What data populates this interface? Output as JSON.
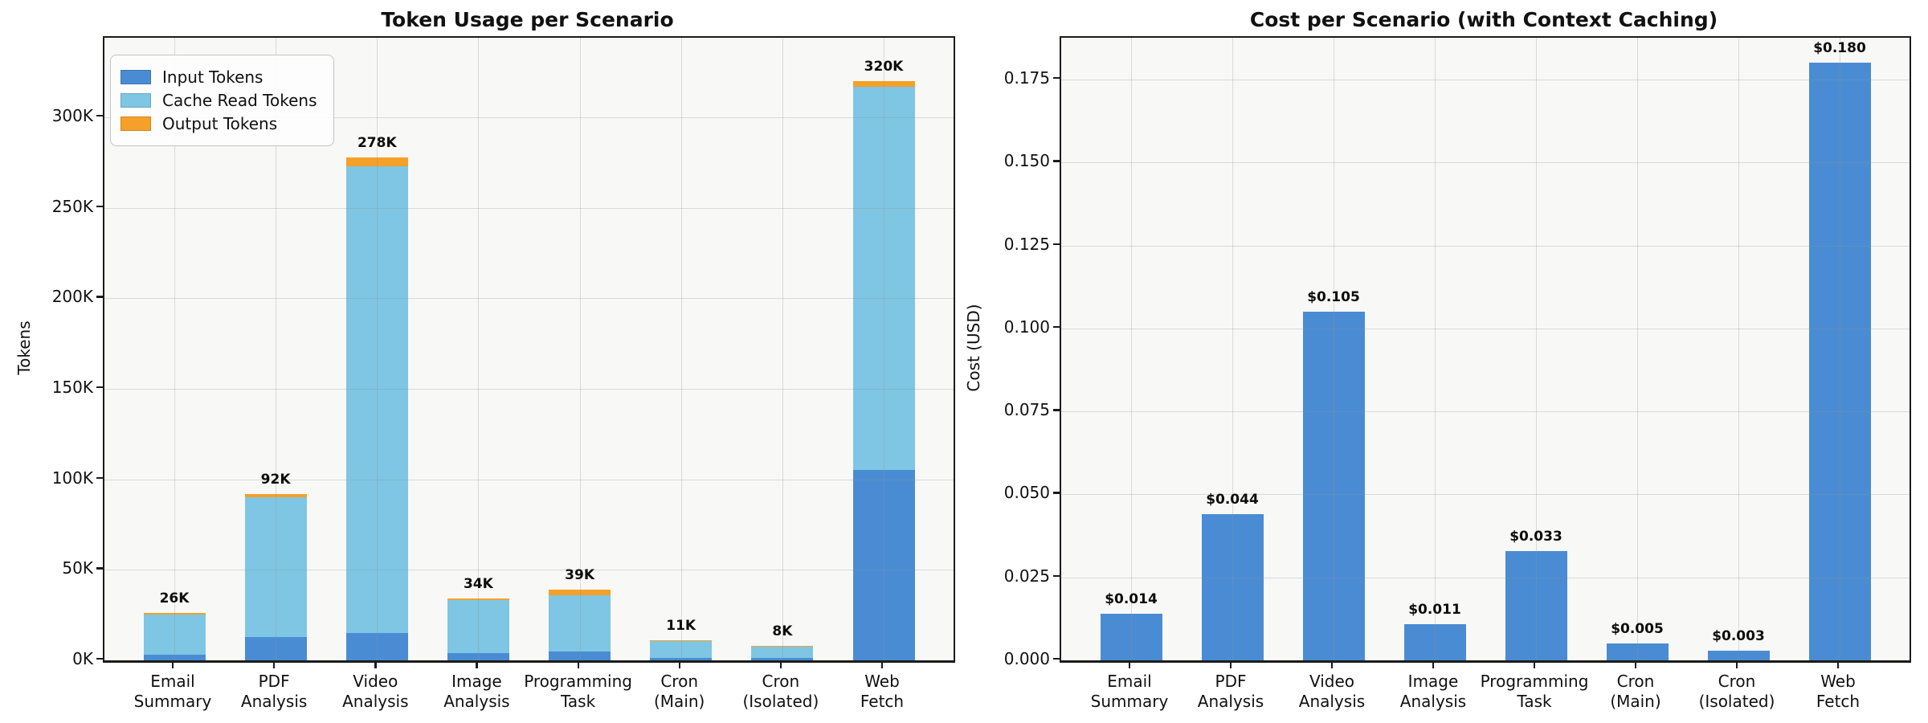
{
  "figure": {
    "background": "#ffffff",
    "plot_background": "#f8f8f7",
    "grid_color": "#d9d9d9",
    "axis_color": "#1b1b1b"
  },
  "chart_data": [
    {
      "type": "bar",
      "stacked": true,
      "title": "Token Usage per Scenario",
      "xlabel": "",
      "ylabel": "Tokens",
      "categories": [
        "Email\nSummary",
        "PDF\nAnalysis",
        "Video\nAnalysis",
        "Image\nAnalysis",
        "Programming\nTask",
        "Cron\n(Main)",
        "Cron\n(Isolated)",
        "Web\nFetch"
      ],
      "series": [
        {
          "name": "Input Tokens",
          "color": "#4a8cd3",
          "values": [
            3000,
            13000,
            15000,
            4000,
            5000,
            1500,
            1300,
            105000
          ]
        },
        {
          "name": "Cache Read Tokens",
          "color": "#7ec6e3",
          "values": [
            22500,
            77000,
            258000,
            29500,
            31000,
            9200,
            6500,
            212000
          ]
        },
        {
          "name": "Output Tokens",
          "color": "#f5a028",
          "values": [
            500,
            2000,
            5000,
            500,
            3000,
            300,
            200,
            3000
          ]
        }
      ],
      "bar_totals": [
        26000,
        92000,
        278000,
        34000,
        39000,
        11000,
        8000,
        320000
      ],
      "bar_total_labels": [
        "26K",
        "92K",
        "278K",
        "34K",
        "39K",
        "11K",
        "8K",
        "320K"
      ],
      "ylim": [
        0,
        344000
      ],
      "yticks": [
        {
          "value": 0,
          "label": "0K"
        },
        {
          "value": 50000,
          "label": "50K"
        },
        {
          "value": 100000,
          "label": "100K"
        },
        {
          "value": 150000,
          "label": "150K"
        },
        {
          "value": 200000,
          "label": "200K"
        },
        {
          "value": 250000,
          "label": "250K"
        },
        {
          "value": 300000,
          "label": "300K"
        }
      ],
      "grid": true,
      "legend_position": "upper-left"
    },
    {
      "type": "bar",
      "stacked": false,
      "title": "Cost per Scenario (with Context Caching)",
      "xlabel": "",
      "ylabel": "Cost (USD)",
      "categories": [
        "Email\nSummary",
        "PDF\nAnalysis",
        "Video\nAnalysis",
        "Image\nAnalysis",
        "Programming\nTask",
        "Cron\n(Main)",
        "Cron\n(Isolated)",
        "Web\nFetch"
      ],
      "series": [
        {
          "name": "Cost",
          "color": "#4a8cd3",
          "values": [
            0.014,
            0.044,
            0.105,
            0.011,
            0.033,
            0.005,
            0.003,
            0.18
          ]
        }
      ],
      "bar_totals": [
        0.014,
        0.044,
        0.105,
        0.011,
        0.033,
        0.005,
        0.003,
        0.18
      ],
      "bar_total_labels": [
        "$0.014",
        "$0.044",
        "$0.105",
        "$0.011",
        "$0.033",
        "$0.005",
        "$0.003",
        "$0.180"
      ],
      "ylim": [
        0,
        0.1876
      ],
      "yticks": [
        {
          "value": 0.0,
          "label": "0.000"
        },
        {
          "value": 0.025,
          "label": "0.025"
        },
        {
          "value": 0.05,
          "label": "0.050"
        },
        {
          "value": 0.075,
          "label": "0.075"
        },
        {
          "value": 0.1,
          "label": "0.100"
        },
        {
          "value": 0.125,
          "label": "0.125"
        },
        {
          "value": 0.15,
          "label": "0.150"
        },
        {
          "value": 0.175,
          "label": "0.175"
        }
      ],
      "grid": true,
      "legend_position": "none"
    }
  ]
}
